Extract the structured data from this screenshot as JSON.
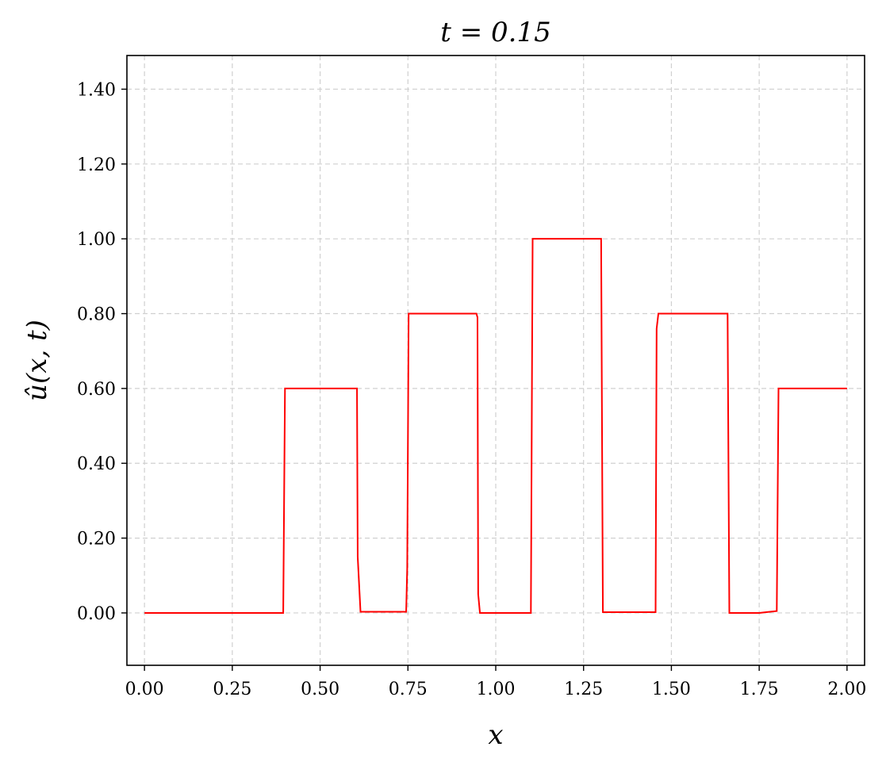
{
  "chart_data": {
    "type": "line",
    "title": "t = 0.15",
    "xlabel": "x",
    "ylabel": "û(x, t)",
    "xlim": [
      -0.05,
      2.05
    ],
    "ylim": [
      -0.14,
      1.49
    ],
    "grid": true,
    "x_ticks": [
      "0.00",
      "0.25",
      "0.50",
      "0.75",
      "1.00",
      "1.25",
      "1.50",
      "1.75",
      "2.00"
    ],
    "y_ticks": [
      "0.00",
      "0.20",
      "0.40",
      "0.60",
      "0.80",
      "1.00",
      "1.20",
      "1.40"
    ],
    "series": [
      {
        "color": "#ff0000",
        "x": [
          0.0,
          0.395,
          0.4,
          0.605,
          0.607,
          0.615,
          0.745,
          0.748,
          0.752,
          0.945,
          0.948,
          0.95,
          0.955,
          1.1,
          1.105,
          1.3,
          1.305,
          1.455,
          1.458,
          1.463,
          1.66,
          1.665,
          1.75,
          1.77,
          1.8,
          1.805,
          2.0
        ],
        "values": [
          0.0,
          0.0,
          0.6,
          0.6,
          0.15,
          0.003,
          0.003,
          0.12,
          0.8,
          0.8,
          0.79,
          0.05,
          0.0,
          0.0,
          1.0,
          1.0,
          0.002,
          0.002,
          0.76,
          0.8,
          0.8,
          0.0,
          0.0,
          0.002,
          0.005,
          0.6,
          0.6
        ]
      }
    ]
  }
}
